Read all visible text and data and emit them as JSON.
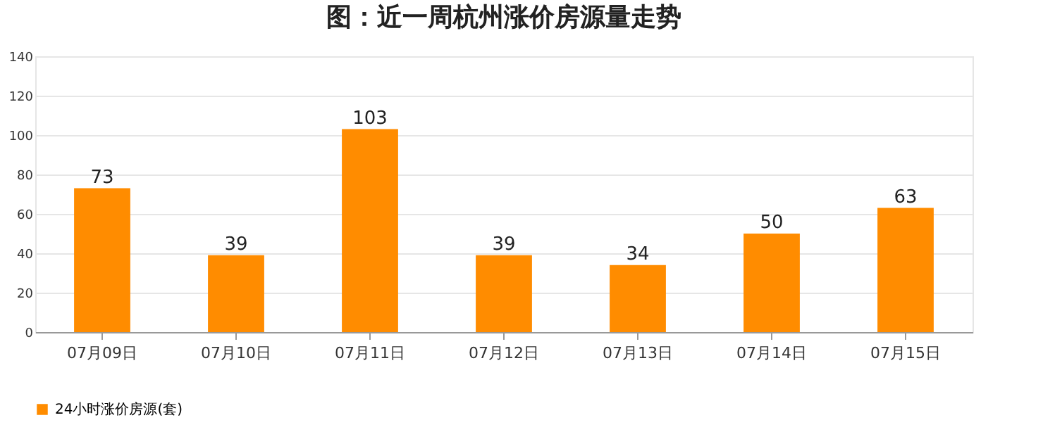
{
  "chart_data": {
    "type": "bar",
    "title": "图：近一周杭州涨价房源量走势",
    "categories": [
      "07月09日",
      "07月10日",
      "07月11日",
      "07月12日",
      "07月13日",
      "07月14日",
      "07月15日"
    ],
    "series": [
      {
        "name": "24小时涨价房源(套)",
        "color": "#ff8c00",
        "values": [
          73,
          39,
          103,
          39,
          34,
          50,
          63
        ]
      }
    ],
    "ylim": [
      0,
      140
    ],
    "yticks": [
      0,
      20,
      40,
      60,
      80,
      100,
      120,
      140
    ],
    "grid": "y",
    "legend": "bottom",
    "data_labels": true
  }
}
